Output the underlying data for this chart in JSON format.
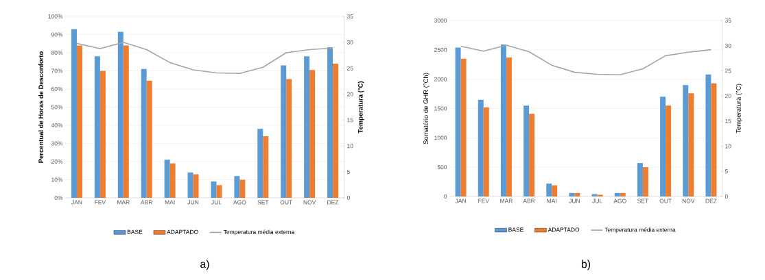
{
  "chart_data": [
    {
      "type": "bar",
      "categories": [
        "JAN",
        "FEV",
        "MAR",
        "ABR",
        "MAI",
        "JUN",
        "JUL",
        "AGO",
        "SET",
        "OUT",
        "NOV",
        "DEZ"
      ],
      "series": [
        {
          "name": "BASE",
          "color": "#5b9bd5",
          "values": [
            93,
            78,
            91.5,
            71,
            21,
            14,
            9,
            12,
            38,
            73,
            78,
            83
          ]
        },
        {
          "name": "ADAPTADO",
          "color": "#ed7d31",
          "values": [
            84,
            70,
            84,
            64.5,
            19,
            13,
            7,
            10,
            34,
            65.5,
            70.5,
            74
          ]
        },
        {
          "name": "Temperatura média externa",
          "type": "line",
          "axis": "y2",
          "color": "#a5a5a5",
          "values": [
            29.8,
            28.8,
            30.0,
            28.6,
            26.1,
            24.7,
            24.1,
            24.0,
            25.2,
            28.0,
            28.6,
            28.9
          ]
        }
      ],
      "ylabel": "Percentual de Horas de Desconforto",
      "y2label": "Temperatura (°C)",
      "ylim": [
        0,
        100
      ],
      "yticks": [
        {
          "value": 0,
          "label": "0%"
        },
        {
          "value": 10,
          "label": "10%"
        },
        {
          "value": 20,
          "label": "20%"
        },
        {
          "value": 30,
          "label": "30%"
        },
        {
          "value": 40,
          "label": "40%"
        },
        {
          "value": 50,
          "label": "50%"
        },
        {
          "value": 60,
          "label": "60%"
        },
        {
          "value": 70,
          "label": "70%"
        },
        {
          "value": 80,
          "label": "80%"
        },
        {
          "value": 90,
          "label": "90%"
        },
        {
          "value": 100,
          "label": "100%"
        }
      ],
      "y2lim": [
        0,
        35
      ],
      "y2ticks": [
        0,
        5,
        10,
        15,
        20,
        25,
        30,
        35
      ],
      "grid": "y",
      "legend": "bottom",
      "annotations": [
        "a)"
      ]
    },
    {
      "type": "bar",
      "categories": [
        "JAN",
        "FEV",
        "MAR",
        "ABR",
        "MAI",
        "JUN",
        "JUL",
        "AGO",
        "SET",
        "OUT",
        "NOV",
        "DEZ"
      ],
      "series": [
        {
          "name": "BASE",
          "color": "#5b9bd5",
          "values": [
            2540,
            1650,
            2590,
            1550,
            220,
            60,
            40,
            60,
            570,
            1700,
            1900,
            2080
          ]
        },
        {
          "name": "ADAPTADO",
          "color": "#ed7d31",
          "values": [
            2350,
            1520,
            2370,
            1410,
            190,
            60,
            30,
            60,
            500,
            1550,
            1760,
            1930
          ]
        },
        {
          "name": "Temperatura média externa",
          "type": "line",
          "axis": "y2",
          "color": "#a5a5a5",
          "values": [
            29.9,
            28.9,
            30.1,
            28.8,
            26.1,
            24.7,
            24.3,
            24.2,
            25.4,
            28.0,
            28.7,
            29.2
          ]
        }
      ],
      "ylabel": "Somatório de GHR (°Ch)",
      "y2label": "Temperatura (°C)",
      "ylim": [
        0,
        3000
      ],
      "yticks": [
        0,
        500,
        1000,
        1500,
        2000,
        2500,
        3000
      ],
      "y2lim": [
        0,
        35
      ],
      "y2ticks": [
        0,
        5,
        10,
        15,
        20,
        25,
        30,
        35
      ],
      "grid": "y",
      "legend": "bottom",
      "annotations": [
        "b)"
      ]
    }
  ]
}
